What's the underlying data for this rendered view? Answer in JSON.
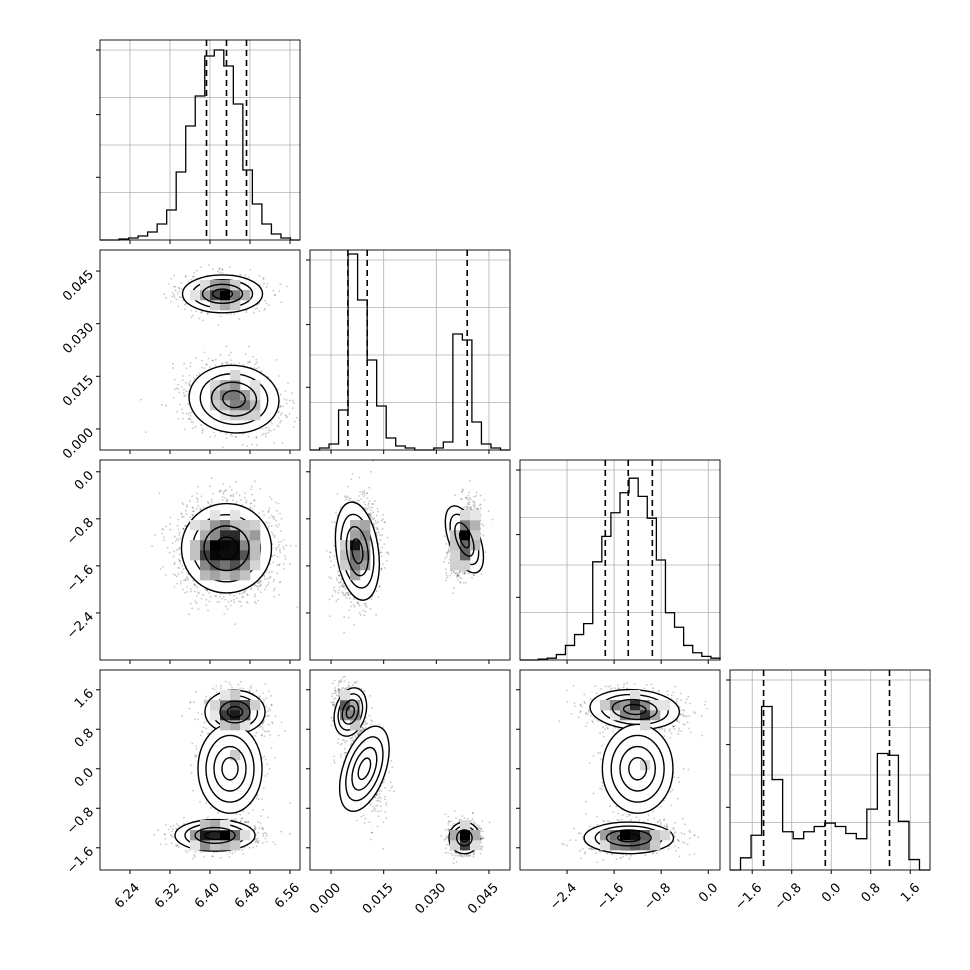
{
  "chart_data": {
    "type": "corner",
    "title": "",
    "parameters": [
      {
        "xlim": [
          6.18,
          6.58
        ],
        "ticks": [
          6.24,
          6.32,
          6.4,
          6.48,
          6.56
        ],
        "tick_labels": [
          "6.24",
          "6.32",
          "6.40",
          "6.48",
          "6.56"
        ],
        "quantiles": [
          6.393,
          6.433,
          6.473
        ]
      },
      {
        "xlim": [
          -0.006,
          0.051
        ],
        "ticks": [
          0.0,
          0.015,
          0.03,
          0.045
        ],
        "tick_labels": [
          "0.000",
          "0.015",
          "0.030",
          "0.045"
        ],
        "quantiles": [
          0.0048,
          0.0103,
          0.0388
        ]
      },
      {
        "xlim": [
          -3.2,
          0.2
        ],
        "ticks": [
          -2.4,
          -1.6,
          -0.8,
          0.0
        ],
        "tick_labels": [
          "−2.4",
          "−1.6",
          "−0.8",
          "0.0"
        ],
        "quantiles": [
          -1.75,
          -1.36,
          -0.95
        ]
      },
      {
        "xlim": [
          -2.05,
          2.0
        ],
        "ticks": [
          -1.6,
          -0.8,
          0.0,
          0.8,
          1.6
        ],
        "tick_labels": [
          "−1.6",
          "−0.8",
          "0.0",
          "0.8",
          "1.6"
        ],
        "quantiles": [
          -1.37,
          -0.12,
          1.18
        ]
      }
    ],
    "histograms": [
      {
        "counts": [
          0,
          0,
          0.5,
          1,
          2,
          4,
          8,
          15,
          34,
          57,
          72,
          92,
          95,
          87,
          68,
          35,
          18,
          8,
          3,
          1,
          0
        ],
        "ymax": 100
      },
      {
        "counts": [
          0,
          1,
          3,
          20,
          98,
          75,
          45,
          22,
          6,
          2,
          1,
          0,
          0,
          1,
          4,
          58,
          55,
          14,
          3,
          1,
          0
        ],
        "ymax": 100
      },
      {
        "counts": [
          0,
          0,
          0.5,
          1,
          3,
          8,
          14,
          20,
          54,
          68,
          81,
          92,
          100,
          90,
          78,
          55,
          26,
          18,
          8,
          4,
          2,
          1
        ],
        "ymax": 110
      },
      {
        "counts": [
          0,
          7,
          20,
          94,
          52,
          22,
          18,
          22,
          25,
          27,
          25,
          21,
          18,
          35,
          67,
          66,
          28,
          6,
          0
        ],
        "ymax": 115
      }
    ],
    "scatter_clusters": {
      "1-0": [
        {
          "cx": 6.425,
          "cy": 0.0385,
          "sx": 0.04,
          "sy": 0.0027,
          "rho": 0,
          "w": 0.4
        },
        {
          "cx": 6.448,
          "cy": 0.0085,
          "sx": 0.045,
          "sy": 0.0048,
          "rho": -0.2,
          "w": 0.6
        }
      ],
      "2-0": [
        {
          "cx": 6.433,
          "cy": -1.3,
          "sx": 0.045,
          "sy": 0.38,
          "rho": 0,
          "w": 1
        }
      ],
      "2-1": [
        {
          "cx": 0.0075,
          "cy": -1.35,
          "sx": 0.003,
          "sy": 0.42,
          "rho": 0.1,
          "w": 0.6
        },
        {
          "cx": 0.038,
          "cy": -1.15,
          "sx": 0.0022,
          "sy": 0.3,
          "rho": 0.3,
          "w": 0.4
        }
      ],
      "3-0": [
        {
          "cx": 6.45,
          "cy": 1.15,
          "sx": 0.03,
          "sy": 0.22,
          "rho": 0,
          "w": 0.38
        },
        {
          "cx": 6.44,
          "cy": 0.0,
          "sx": 0.032,
          "sy": 0.45,
          "rho": 0,
          "w": 0.24
        },
        {
          "cx": 6.41,
          "cy": -1.35,
          "sx": 0.04,
          "sy": 0.16,
          "rho": 0,
          "w": 0.38
        }
      ],
      "3-1": [
        {
          "cx": 0.0055,
          "cy": 1.15,
          "sx": 0.0022,
          "sy": 0.25,
          "rho": -0.3,
          "w": 0.38
        },
        {
          "cx": 0.0095,
          "cy": 0.0,
          "sx": 0.003,
          "sy": 0.45,
          "rho": -0.3,
          "w": 0.24
        },
        {
          "cx": 0.038,
          "cy": -1.4,
          "sx": 0.0022,
          "sy": 0.16,
          "rho": 0,
          "w": 0.38
        }
      ],
      "3-2": [
        {
          "cx": -1.25,
          "cy": 1.2,
          "sx": 0.38,
          "sy": 0.2,
          "rho": -0.25,
          "w": 0.38
        },
        {
          "cx": -1.2,
          "cy": 0.0,
          "sx": 0.3,
          "sy": 0.45,
          "rho": 0,
          "w": 0.24
        },
        {
          "cx": -1.35,
          "cy": -1.4,
          "sx": 0.38,
          "sy": 0.16,
          "rho": 0,
          "w": 0.38
        }
      ]
    },
    "colors": {
      "line": "#000000",
      "grid": "#b0b0b0",
      "points": "#000000",
      "contour_fill": "#ffffff"
    }
  }
}
